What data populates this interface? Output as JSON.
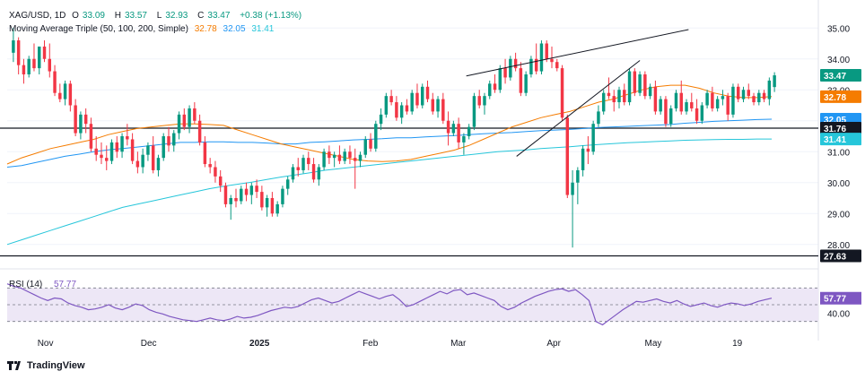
{
  "header": {
    "symbol": "XAG/USD, 1D",
    "open_label": "O",
    "open": "33.09",
    "high_label": "H",
    "high": "33.57",
    "low_label": "L",
    "low": "32.93",
    "close_label": "C",
    "close": "33.47",
    "change": "+0.38 (+1.13%)",
    "ma_title": "Moving Average Triple (50, 100, 200, Simple)",
    "ma50": "32.78",
    "ma100": "32.05",
    "ma200": "31.41"
  },
  "footer": {
    "brand": "TradingView"
  },
  "colors": {
    "up": "#089981",
    "down": "#f23645",
    "ma50": "#f57c00",
    "ma100": "#2196f3",
    "ma200": "#26c6da",
    "rsi": "#7e57c2",
    "rsi_band": "#ede7f6",
    "last_price": "#089981"
  },
  "chart_data": {
    "type": "candlestick",
    "ylim": [
      27.5,
      35.5
    ],
    "y_ticks": [
      "35.00",
      "34.00",
      "33.00",
      "32.00",
      "31.00",
      "30.00",
      "29.00",
      "28.00"
    ],
    "x_ticks": [
      "Nov",
      "Dec",
      "2025",
      "Feb",
      "Mar",
      "Apr",
      "May",
      "19"
    ],
    "price_labels": [
      {
        "value": 33.47,
        "text": "33.47",
        "kind": "last"
      },
      {
        "value": 32.78,
        "text": "32.78",
        "kind": "ma50"
      },
      {
        "value": 32.05,
        "text": "32.05",
        "kind": "ma100"
      },
      {
        "value": 31.76,
        "text": "31.76",
        "kind": "hline"
      },
      {
        "value": 31.41,
        "text": "31.41",
        "kind": "ma200"
      },
      {
        "value": 27.63,
        "text": "27.63",
        "kind": "hline"
      }
    ],
    "horizontal_lines": [
      31.76,
      27.63
    ],
    "trendlines": [
      {
        "from": [
          0.566,
          33.45
        ],
        "to": [
          0.84,
          34.95
        ]
      },
      {
        "from": [
          0.628,
          30.85
        ],
        "to": [
          0.78,
          33.95
        ]
      }
    ],
    "candles": [
      [
        34.2,
        35.0,
        33.9,
        34.6
      ],
      [
        34.6,
        34.7,
        33.5,
        33.8
      ],
      [
        33.8,
        34.0,
        33.2,
        33.5
      ],
      [
        33.5,
        34.1,
        33.4,
        34.0
      ],
      [
        34.0,
        34.5,
        33.6,
        33.7
      ],
      [
        33.7,
        34.4,
        33.5,
        34.4
      ],
      [
        34.4,
        34.6,
        33.9,
        34.0
      ],
      [
        34.0,
        34.5,
        33.4,
        33.6
      ],
      [
        33.6,
        33.8,
        32.8,
        32.9
      ],
      [
        32.9,
        33.2,
        32.6,
        32.7
      ],
      [
        32.7,
        33.3,
        32.5,
        33.2
      ],
      [
        33.2,
        33.3,
        32.3,
        32.5
      ],
      [
        32.5,
        32.7,
        31.5,
        31.6
      ],
      [
        31.6,
        32.3,
        31.4,
        32.2
      ],
      [
        32.2,
        32.4,
        31.6,
        31.9
      ],
      [
        31.9,
        32.1,
        31.0,
        31.1
      ],
      [
        31.1,
        31.5,
        30.7,
        30.9
      ],
      [
        30.9,
        31.3,
        30.6,
        30.8
      ],
      [
        30.8,
        31.2,
        30.4,
        30.7
      ],
      [
        30.7,
        31.4,
        30.6,
        31.3
      ],
      [
        31.3,
        31.5,
        30.8,
        31.0
      ],
      [
        31.0,
        31.6,
        30.8,
        31.5
      ],
      [
        31.5,
        31.9,
        31.2,
        31.4
      ],
      [
        31.4,
        31.6,
        30.6,
        30.7
      ],
      [
        30.7,
        31.0,
        30.3,
        30.5
      ],
      [
        30.5,
        31.1,
        30.3,
        30.9
      ],
      [
        30.9,
        31.3,
        30.7,
        31.2
      ],
      [
        31.2,
        31.5,
        30.3,
        30.4
      ],
      [
        30.4,
        30.9,
        30.2,
        30.8
      ],
      [
        30.8,
        31.6,
        30.7,
        31.5
      ],
      [
        31.5,
        31.8,
        31.0,
        31.2
      ],
      [
        31.2,
        31.7,
        31.0,
        31.6
      ],
      [
        31.6,
        32.3,
        31.4,
        32.2
      ],
      [
        32.2,
        32.4,
        31.7,
        31.8
      ],
      [
        31.8,
        32.5,
        31.6,
        32.4
      ],
      [
        32.4,
        32.6,
        31.9,
        32.0
      ],
      [
        32.0,
        32.2,
        31.2,
        31.3
      ],
      [
        31.3,
        31.5,
        30.5,
        30.6
      ],
      [
        30.6,
        30.8,
        30.3,
        30.5
      ],
      [
        30.5,
        30.7,
        30.0,
        30.2
      ],
      [
        30.2,
        30.4,
        29.7,
        29.9
      ],
      [
        29.9,
        30.0,
        29.2,
        29.3
      ],
      [
        29.3,
        29.6,
        28.8,
        29.5
      ],
      [
        29.5,
        29.8,
        29.2,
        29.4
      ],
      [
        29.4,
        29.9,
        29.3,
        29.8
      ],
      [
        29.8,
        30.0,
        29.4,
        29.6
      ],
      [
        29.6,
        30.0,
        29.3,
        29.9
      ],
      [
        29.9,
        30.1,
        29.5,
        29.7
      ],
      [
        29.7,
        29.9,
        29.1,
        29.2
      ],
      [
        29.2,
        29.6,
        28.9,
        29.5
      ],
      [
        29.5,
        29.7,
        28.9,
        29.0
      ],
      [
        29.0,
        29.4,
        28.9,
        29.3
      ],
      [
        29.3,
        29.9,
        29.2,
        29.8
      ],
      [
        29.8,
        30.2,
        29.6,
        30.1
      ],
      [
        30.1,
        30.6,
        30.0,
        30.5
      ],
      [
        30.5,
        30.8,
        30.2,
        30.4
      ],
      [
        30.4,
        30.9,
        30.3,
        30.8
      ],
      [
        30.8,
        31.0,
        30.4,
        30.6
      ],
      [
        30.6,
        30.8,
        30.0,
        30.1
      ],
      [
        30.1,
        30.6,
        29.9,
        30.5
      ],
      [
        30.5,
        31.1,
        30.4,
        31.0
      ],
      [
        31.0,
        31.2,
        30.6,
        30.8
      ],
      [
        30.8,
        31.0,
        30.5,
        30.9
      ],
      [
        30.9,
        31.2,
        30.6,
        30.7
      ],
      [
        30.7,
        31.1,
        30.6,
        31.0
      ],
      [
        31.0,
        31.2,
        30.6,
        30.8
      ],
      [
        30.8,
        31.1,
        29.8,
        30.7
      ],
      [
        30.7,
        31.0,
        30.5,
        30.9
      ],
      [
        30.9,
        31.5,
        30.8,
        31.4
      ],
      [
        31.4,
        31.6,
        31.0,
        31.1
      ],
      [
        31.1,
        32.0,
        31.0,
        31.9
      ],
      [
        31.9,
        32.4,
        31.7,
        32.2
      ],
      [
        32.2,
        32.9,
        32.1,
        32.8
      ],
      [
        32.8,
        33.0,
        32.5,
        32.6
      ],
      [
        32.6,
        32.8,
        32.0,
        32.1
      ],
      [
        32.1,
        32.6,
        31.9,
        32.5
      ],
      [
        32.5,
        32.7,
        32.2,
        32.3
      ],
      [
        32.3,
        33.0,
        32.2,
        32.9
      ],
      [
        32.9,
        33.2,
        32.4,
        32.5
      ],
      [
        32.5,
        33.2,
        32.4,
        33.1
      ],
      [
        33.1,
        33.3,
        32.6,
        32.7
      ],
      [
        32.7,
        32.9,
        32.2,
        32.3
      ],
      [
        32.3,
        32.8,
        32.1,
        32.7
      ],
      [
        32.7,
        32.9,
        31.9,
        32.0
      ],
      [
        32.0,
        32.3,
        31.2,
        31.6
      ],
      [
        31.6,
        32.0,
        31.5,
        31.9
      ],
      [
        31.9,
        32.1,
        31.1,
        31.3
      ],
      [
        31.3,
        31.6,
        30.9,
        31.5
      ],
      [
        31.5,
        31.9,
        31.4,
        31.8
      ],
      [
        31.8,
        32.9,
        31.7,
        32.8
      ],
      [
        32.8,
        33.0,
        32.4,
        32.5
      ],
      [
        32.5,
        32.9,
        32.2,
        32.8
      ],
      [
        32.8,
        33.3,
        32.7,
        33.2
      ],
      [
        33.2,
        33.5,
        32.9,
        33.0
      ],
      [
        33.0,
        33.8,
        32.9,
        33.7
      ],
      [
        33.7,
        34.0,
        33.2,
        33.4
      ],
      [
        33.4,
        34.1,
        33.3,
        34.0
      ],
      [
        34.0,
        34.2,
        33.6,
        33.7
      ],
      [
        33.7,
        33.9,
        32.8,
        32.9
      ],
      [
        32.9,
        33.6,
        32.8,
        33.5
      ],
      [
        33.5,
        34.1,
        33.4,
        34.0
      ],
      [
        34.0,
        34.5,
        33.5,
        33.6
      ],
      [
        33.6,
        34.6,
        33.5,
        34.5
      ],
      [
        34.5,
        34.6,
        33.9,
        34.0
      ],
      [
        34.0,
        34.4,
        33.7,
        33.9
      ],
      [
        33.9,
        34.0,
        33.6,
        33.7
      ],
      [
        33.7,
        33.8,
        32.0,
        32.1
      ],
      [
        32.1,
        32.2,
        29.5,
        29.6
      ],
      [
        29.6,
        30.4,
        27.9,
        30.0
      ],
      [
        30.0,
        30.5,
        29.3,
        30.4
      ],
      [
        30.4,
        31.2,
        30.2,
        31.1
      ],
      [
        31.1,
        31.5,
        30.6,
        31.0
      ],
      [
        31.0,
        32.0,
        30.9,
        31.9
      ],
      [
        31.9,
        32.5,
        31.8,
        32.3
      ],
      [
        32.3,
        33.0,
        32.2,
        32.9
      ],
      [
        32.9,
        33.4,
        32.7,
        32.8
      ],
      [
        32.8,
        33.0,
        32.3,
        32.6
      ],
      [
        32.6,
        33.1,
        32.4,
        33.0
      ],
      [
        33.0,
        33.2,
        32.5,
        32.6
      ],
      [
        32.6,
        33.7,
        32.5,
        33.6
      ],
      [
        33.6,
        33.7,
        32.8,
        32.9
      ],
      [
        32.9,
        33.6,
        32.8,
        33.5
      ],
      [
        33.5,
        33.6,
        32.7,
        32.8
      ],
      [
        32.8,
        33.2,
        32.7,
        33.1
      ],
      [
        33.1,
        33.3,
        32.2,
        32.3
      ],
      [
        32.3,
        32.8,
        32.2,
        32.7
      ],
      [
        32.7,
        32.8,
        31.8,
        31.9
      ],
      [
        31.9,
        32.5,
        31.8,
        32.4
      ],
      [
        32.4,
        33.0,
        32.3,
        32.9
      ],
      [
        32.9,
        33.3,
        32.2,
        32.3
      ],
      [
        32.3,
        32.7,
        32.2,
        32.6
      ],
      [
        32.6,
        32.9,
        32.3,
        32.4
      ],
      [
        32.4,
        32.7,
        31.9,
        32.0
      ],
      [
        32.0,
        32.6,
        31.9,
        32.5
      ],
      [
        32.5,
        33.0,
        32.4,
        32.9
      ],
      [
        32.9,
        33.1,
        32.3,
        32.4
      ],
      [
        32.4,
        32.8,
        32.3,
        32.7
      ],
      [
        32.7,
        33.0,
        32.5,
        32.8
      ],
      [
        32.8,
        32.9,
        32.0,
        32.2
      ],
      [
        32.2,
        33.2,
        32.1,
        33.1
      ],
      [
        33.1,
        33.2,
        32.6,
        32.7
      ],
      [
        32.7,
        33.1,
        32.6,
        33.0
      ],
      [
        33.0,
        33.2,
        32.7,
        32.8
      ],
      [
        32.8,
        32.9,
        32.5,
        32.6
      ],
      [
        32.6,
        33.0,
        32.5,
        32.9
      ],
      [
        32.9,
        33.0,
        32.6,
        32.7
      ],
      [
        32.7,
        33.4,
        32.5,
        33.3
      ],
      [
        33.09,
        33.57,
        32.93,
        33.47
      ]
    ],
    "ma50": [
      30.6,
      30.8,
      30.95,
      31.1,
      31.2,
      31.3,
      31.4,
      31.55,
      31.65,
      31.75,
      31.8,
      31.85,
      31.9,
      31.9,
      31.88,
      31.85,
      31.7,
      31.55,
      31.4,
      31.25,
      31.15,
      31.05,
      30.95,
      30.85,
      30.75,
      30.7,
      30.68,
      30.7,
      30.75,
      30.85,
      30.95,
      31.05,
      31.2,
      31.4,
      31.6,
      31.8,
      31.95,
      32.1,
      32.2,
      32.3,
      32.45,
      32.6,
      32.7,
      32.85,
      33.0,
      33.1,
      33.15,
      33.15,
      33.05,
      32.9,
      32.8,
      32.75,
      32.75,
      32.78
    ],
    "ma100": [
      30.5,
      30.55,
      30.65,
      30.75,
      30.85,
      30.92,
      31.0,
      31.06,
      31.1,
      31.15,
      31.2,
      31.25,
      31.3,
      31.3,
      31.32,
      31.32,
      31.3,
      31.3,
      31.28,
      31.25,
      31.25,
      31.3,
      31.32,
      31.35,
      31.38,
      31.4,
      31.42,
      31.45,
      31.45,
      31.48,
      31.5,
      31.52,
      31.55,
      31.58,
      31.6,
      31.62,
      31.65,
      31.68,
      31.7,
      31.72,
      31.75,
      31.78,
      31.8,
      31.82,
      31.84,
      31.86,
      31.88,
      31.92,
      31.95,
      31.98,
      32.0,
      32.02,
      32.04,
      32.05
    ],
    "ma200": [
      28.0,
      28.15,
      28.3,
      28.45,
      28.6,
      28.75,
      28.9,
      29.05,
      29.2,
      29.3,
      29.4,
      29.5,
      29.6,
      29.7,
      29.8,
      29.88,
      29.95,
      30.02,
      30.1,
      30.18,
      30.25,
      30.32,
      30.4,
      30.45,
      30.5,
      30.55,
      30.6,
      30.65,
      30.7,
      30.75,
      30.8,
      30.85,
      30.9,
      30.95,
      31.0,
      31.03,
      31.06,
      31.1,
      31.13,
      31.16,
      31.2,
      31.23,
      31.26,
      31.29,
      31.31,
      31.33,
      31.35,
      31.37,
      31.38,
      31.39,
      31.4,
      31.4,
      31.41,
      31.41
    ],
    "rsi": {
      "label": "RSI (14)",
      "value_text": "57.77",
      "ylim": [
        20,
        80
      ],
      "y_ticks": [
        "40.00"
      ],
      "values": [
        75,
        72,
        70,
        66,
        62,
        58,
        55,
        58,
        57,
        52,
        49,
        47,
        44,
        45,
        47,
        50,
        46,
        44,
        47,
        51,
        49,
        44,
        41,
        39,
        36,
        34,
        32,
        31,
        30,
        32,
        34,
        32,
        31,
        33,
        36,
        34,
        35,
        37,
        40,
        43,
        45,
        47,
        46,
        48,
        52,
        56,
        58,
        55,
        52,
        54,
        58,
        62,
        66,
        63,
        60,
        57,
        60,
        62,
        56,
        48,
        50,
        54,
        58,
        62,
        66,
        63,
        67,
        68,
        62,
        64,
        61,
        58,
        55,
        48,
        44,
        47,
        52,
        56,
        60,
        63,
        66,
        68,
        69,
        66,
        68,
        62,
        55,
        30,
        26,
        32,
        38,
        44,
        49,
        54,
        53,
        55,
        57,
        54,
        52,
        55,
        51,
        48,
        50,
        52,
        49,
        47,
        50,
        52,
        51,
        49,
        51,
        54,
        56,
        57.77
      ]
    }
  }
}
